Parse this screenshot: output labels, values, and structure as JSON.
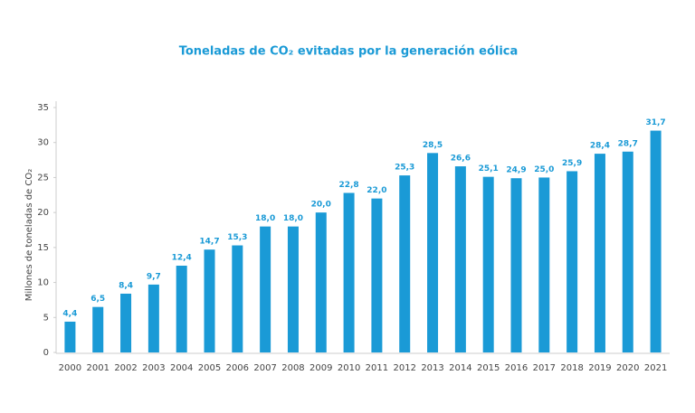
{
  "chart_data": {
    "type": "bar",
    "title": "Toneladas de CO₂ evitadas por la generación eólica",
    "y_label": "Millones de toneladas de CO₂",
    "categories": [
      "2000",
      "2001",
      "2002",
      "2003",
      "2004",
      "2005",
      "2006",
      "2007",
      "2008",
      "2009",
      "2010",
      "2011",
      "2012",
      "2013",
      "2014",
      "2015",
      "2016",
      "2017",
      "2018",
      "2019",
      "2020",
      "2021"
    ],
    "values": [
      4.4,
      6.5,
      8.4,
      9.7,
      12.4,
      14.7,
      15.3,
      18.0,
      18.0,
      20.0,
      22.8,
      22.0,
      25.3,
      28.5,
      26.6,
      25.1,
      24.9,
      25.0,
      25.9,
      28.4,
      28.7,
      31.7
    ],
    "value_labels": [
      "4,4",
      "6,5",
      "8,4",
      "9,7",
      "12,4",
      "14,7",
      "15,3",
      "18,0",
      "18,0",
      "20,0",
      "22,8",
      "22,0",
      "25,3",
      "28,5",
      "26,6",
      "25,1",
      "24,9",
      "25,0",
      "25,9",
      "28,4",
      "28,7",
      "31,7"
    ],
    "color": "#1a9ad6",
    "ylim": [
      0,
      35
    ],
    "yticks": [
      0,
      5,
      10,
      15,
      20,
      25,
      30,
      35
    ],
    "grid": false
  }
}
